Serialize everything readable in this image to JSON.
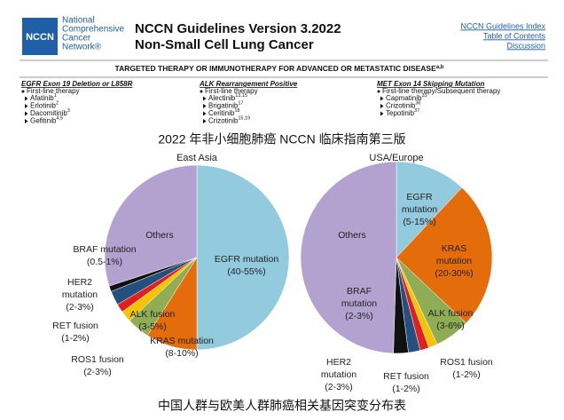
{
  "header": {
    "logo": "NCCN",
    "org": [
      "National",
      "Comprehensive",
      "Cancer",
      "Network®"
    ],
    "title": [
      "NCCN Guidelines Version 3.2022",
      "Non-Small Cell Lung Cancer"
    ],
    "links": [
      "NCCN Guidelines Index",
      "Table of Contents",
      "Discussion"
    ]
  },
  "section": {
    "title": "TARGETED THERAPY OR IMMUNOTHERAPY FOR ADVANCED OR METASTATIC DISEASE",
    "title_sup": "a,b",
    "columns": [
      {
        "heading": "EGFR Exon 19 Deletion or L858R",
        "subheading": "First-line therapy",
        "items": [
          {
            "name": "Afatinib",
            "sup": "1"
          },
          {
            "name": "Erlotinib",
            "sup": "2"
          },
          {
            "name": "Dacomitinib",
            "sup": "3"
          },
          {
            "name": "Gefitinib",
            "sup": "4,5"
          }
        ]
      },
      {
        "heading": "ALK Rearrangement Positive",
        "subheading": "First-line therapy",
        "items": [
          {
            "name": "Alectinib",
            "sup": "13,15"
          },
          {
            "name": "Brigatinib",
            "sup": "17"
          },
          {
            "name": "Ceritinib",
            "sup": "18"
          },
          {
            "name": "Crizotinib",
            "sup": "15,19"
          }
        ]
      },
      {
        "heading": "MET Exon 14 Skipping Mutation",
        "subheading": "First-line therapy/Subsequent therapy",
        "items": [
          {
            "name": "Capmatinib",
            "sup": "33"
          },
          {
            "name": "Crizotinib",
            "sup": "36"
          },
          {
            "name": "Tepotinib",
            "sup": "37"
          }
        ]
      }
    ]
  },
  "caption_top": "2022 年非小细胞肺癌 NCCN 临床指南第三版",
  "caption_bottom": "中国人群与欧美人群肺癌相关基因突变分布表",
  "chart_data": [
    {
      "type": "pie",
      "title": "East Asia",
      "labels": [
        [
          "EGFR mutation",
          "(40-55%)"
        ],
        [
          "KRAS mutation",
          "(8-10%)"
        ],
        [
          "ALK fusion",
          "(3-5%)"
        ],
        [
          "ROS1 fusion",
          "(2-3%)"
        ],
        [
          "RET fusion",
          "(1-2%)"
        ],
        [
          "HER2",
          "mutation",
          "(2-3%)"
        ],
        [
          "BRAF mutation",
          "(0.5-1%)"
        ],
        [
          "Others"
        ]
      ],
      "values": [
        50,
        9,
        4,
        2,
        1.5,
        2.5,
        1,
        30
      ],
      "colors": [
        "#92cade",
        "#e46c0a",
        "#8fad55",
        "#f5c400",
        "#e01f1f",
        "#244f7e",
        "#111111",
        "#b3a2cf"
      ]
    },
    {
      "type": "pie",
      "title": "USA/Europe",
      "labels": [
        [
          "EGFR",
          "mutation",
          "(5-15%)"
        ],
        [
          "KRAS",
          "mutation",
          "(20-30%)"
        ],
        [
          "ALK fusion",
          "(3-6%)"
        ],
        [
          "ROS1 fusion",
          "(1-2%)"
        ],
        [
          "RET fusion",
          "(1-2%)"
        ],
        [
          "HER2",
          "mutation",
          "(2-3%)"
        ],
        [
          "BRAF",
          "mutation",
          "(2-3%)"
        ],
        [
          "Others"
        ]
      ],
      "values": [
        12,
        25,
        6,
        1.5,
        1.5,
        2,
        2.5,
        49.5
      ],
      "colors": [
        "#92cade",
        "#e46c0a",
        "#8fad55",
        "#f5c400",
        "#e01f1f",
        "#244f7e",
        "#111111",
        "#b3a2cf"
      ]
    }
  ]
}
